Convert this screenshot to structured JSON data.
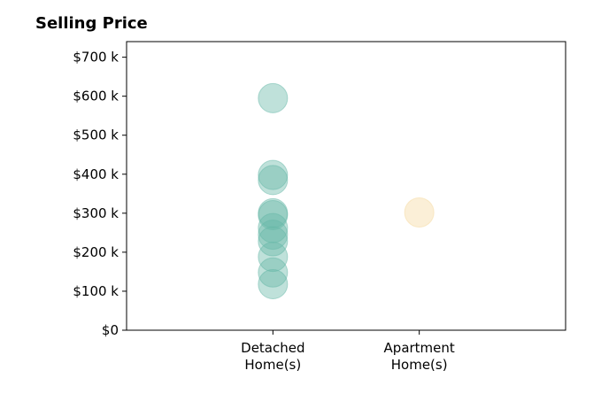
{
  "chart_data": {
    "type": "scatter",
    "title": "Selling Price",
    "xlabel": "",
    "ylabel": "",
    "categories": [
      "Detached\nHome(s)",
      "Apartment\nHome(s)"
    ],
    "ylim": [
      0,
      740000
    ],
    "xlim": [
      -1,
      2
    ],
    "yticks": [
      0,
      100000,
      200000,
      300000,
      400000,
      500000,
      600000,
      700000
    ],
    "ytick_labels": [
      "$0",
      "$100 k",
      "$200 k",
      "$300 k",
      "$400 k",
      "$500 k",
      "$600 k",
      "$700 k"
    ],
    "grid": false,
    "series": [
      {
        "category": "Detached\nHome(s)",
        "color": "#66b8a8",
        "values": [
          595000,
          398000,
          385000,
          300000,
          295000,
          262000,
          245000,
          228000,
          188000,
          148000,
          118000
        ]
      },
      {
        "category": "Apartment\nHome(s)",
        "color": "#f5d9a0",
        "values": [
          302000
        ]
      }
    ]
  }
}
